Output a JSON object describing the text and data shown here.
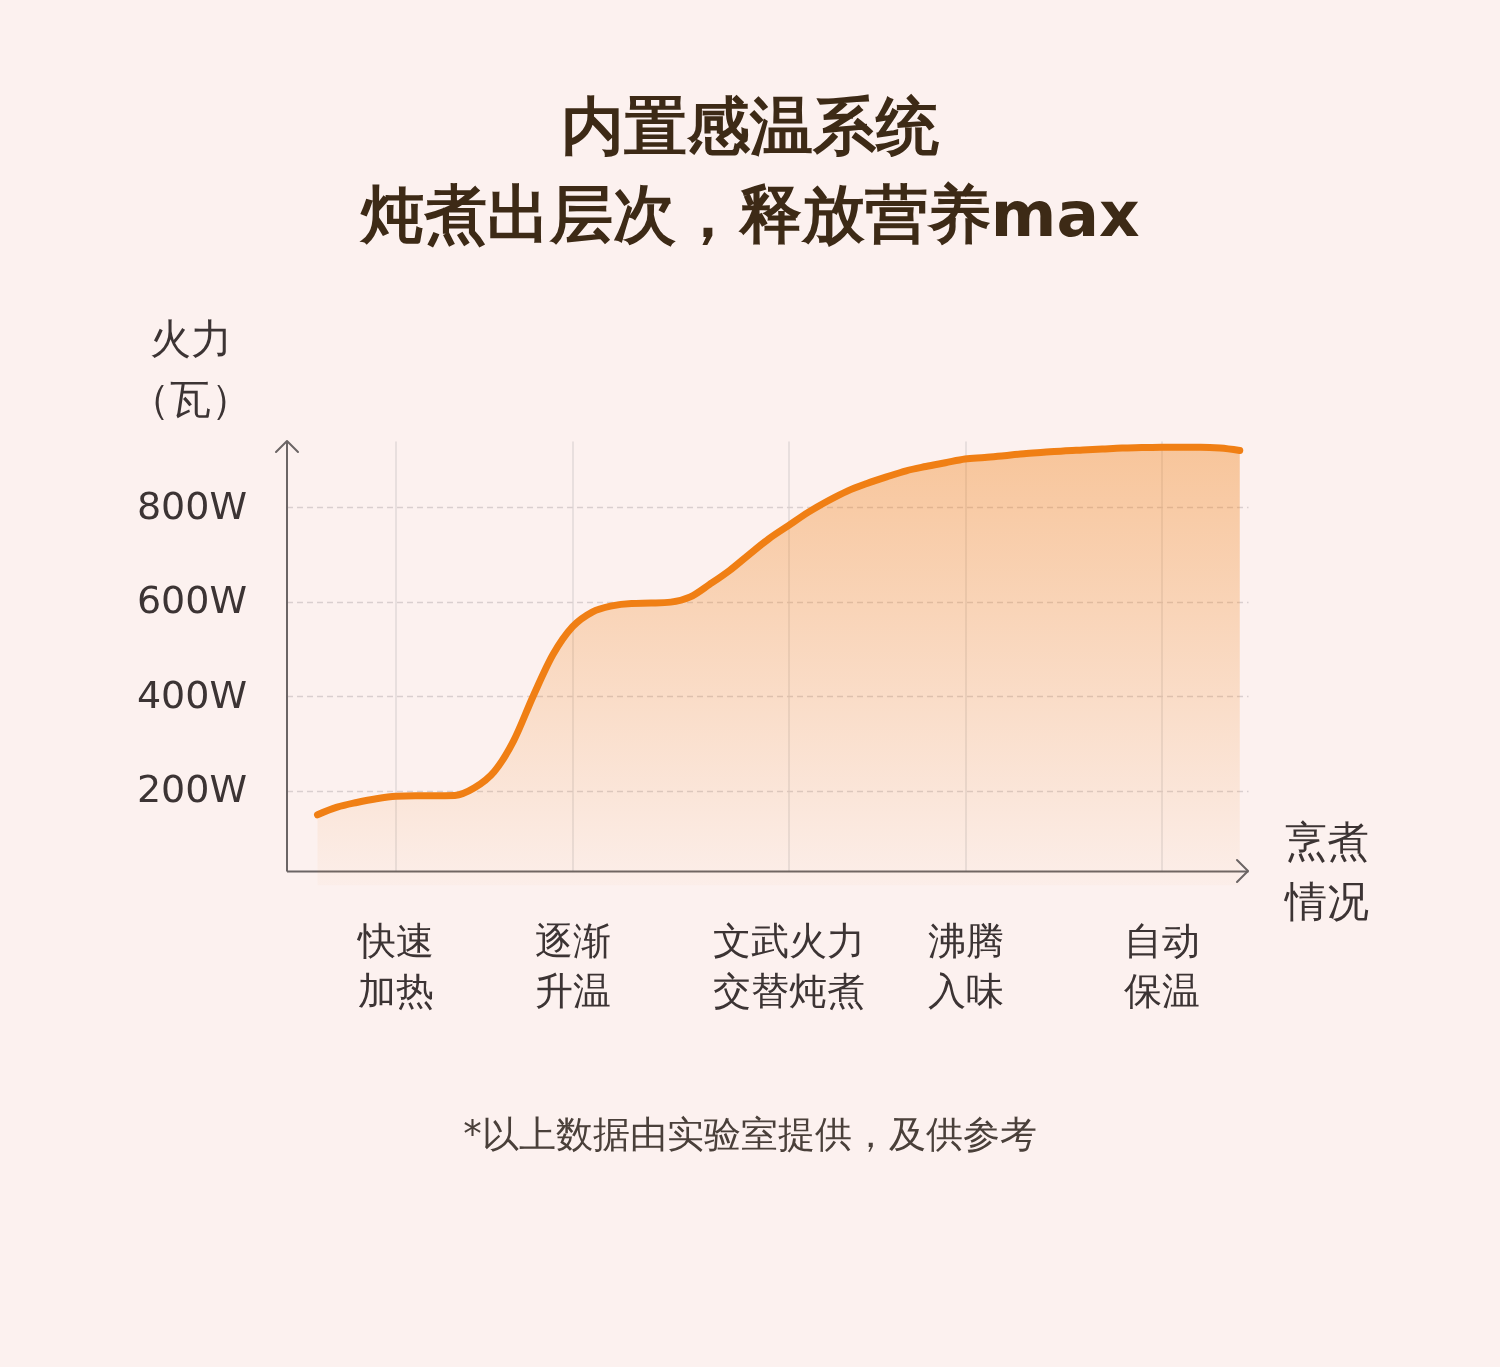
{
  "chart_data": {
    "type": "area",
    "title": "内置感温系统",
    "subtitle": "炖煮出层次，释放营养max",
    "ylabel": "火力（瓦）",
    "xlabel": "烹煮情况",
    "annotations": [
      "*以上数据由实验室提供，及供参考"
    ],
    "categories": [
      null,
      null,
      null,
      null,
      "快速加热",
      null,
      null,
      null,
      null,
      null,
      null,
      null,
      null,
      "逐渐升温",
      null,
      null,
      null,
      null,
      null,
      null,
      null,
      null,
      null,
      null,
      "文武火力交替炖煮",
      null,
      null,
      null,
      null,
      null,
      null,
      null,
      null,
      "沸腾入味",
      null,
      null,
      null,
      null,
      null,
      null,
      null,
      null,
      null,
      "自动保温",
      null,
      null,
      null,
      null
    ],
    "series": [
      {
        "color": "#f07f14",
        "values": [
          149,
          165,
          175,
          183,
          188,
          189,
          189,
          190,
          206,
          240,
          306,
          401,
          488,
          547,
          578,
          591,
          596,
          597,
          599,
          610,
          637,
          666,
          700,
          733,
          761,
          789,
          813,
          834,
          850,
          864,
          877,
          886,
          894,
          902,
          905,
          909,
          913,
          916,
          919,
          921,
          923,
          925,
          926,
          927,
          927,
          927,
          925,
          920
        ]
      }
    ],
    "ylim": [
      30,
      940
    ],
    "yticks": [
      {
        "value": 200,
        "label": "200W"
      },
      {
        "value": 400,
        "label": "400W"
      },
      {
        "value": 600,
        "label": "600W"
      },
      {
        "value": 800,
        "label": "800W"
      }
    ],
    "grid": true
  }
}
